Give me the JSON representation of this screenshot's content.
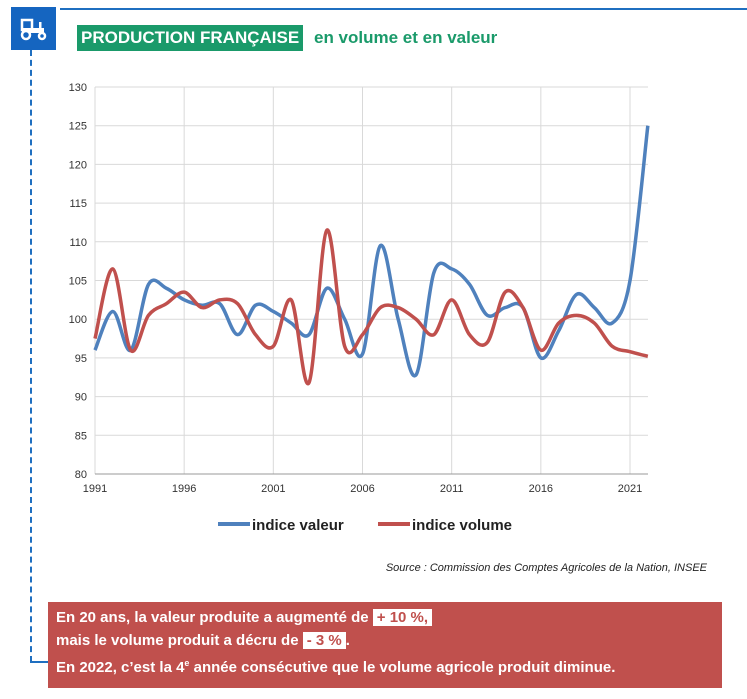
{
  "header": {
    "title": "PRODUCTION FRANÇAISE",
    "subtitle": "en volume et en valeur",
    "icon": "tractor-icon"
  },
  "chart_data": {
    "type": "line",
    "x": [
      1991,
      1992,
      1993,
      1994,
      1995,
      1996,
      1997,
      1998,
      1999,
      2000,
      2001,
      2002,
      2003,
      2004,
      2005,
      2006,
      2007,
      2008,
      2009,
      2010,
      2011,
      2012,
      2013,
      2014,
      2015,
      2016,
      2017,
      2018,
      2019,
      2020,
      2021,
      2022
    ],
    "series": [
      {
        "name": "indice valeur",
        "color": "#4f81bd",
        "values": [
          96,
          101,
          96,
          104.5,
          104,
          102.5,
          101.8,
          102,
          98,
          101.8,
          101,
          99.5,
          98,
          104,
          100,
          95.5,
          109.5,
          100,
          92.8,
          106,
          106.5,
          104.5,
          100.5,
          101.5,
          101.5,
          95,
          98.5,
          103.2,
          101.5,
          99.5,
          105,
          125
        ]
      },
      {
        "name": "indice volume",
        "color": "#c0504d",
        "values": [
          97.5,
          106.5,
          96,
          100.5,
          102,
          103.5,
          101.5,
          102.5,
          102,
          98,
          96.5,
          102.5,
          91.8,
          111.5,
          96.5,
          98,
          101.5,
          101.5,
          100,
          98,
          102.5,
          98,
          97,
          103.5,
          101.5,
          96,
          99.5,
          100.5,
          99.5,
          96.5,
          95.8,
          95.2
        ]
      }
    ],
    "xticks": [
      "1991",
      "1996",
      "2001",
      "2006",
      "2011",
      "2016",
      "2021"
    ],
    "yticks": [
      "80",
      "85",
      "90",
      "95",
      "100",
      "105",
      "110",
      "115",
      "120",
      "125",
      "130"
    ],
    "ylim": [
      80,
      130
    ],
    "xlim": [
      1991,
      2022
    ],
    "grid": true,
    "legend": "bottom"
  },
  "source": "Source : Commission des Comptes Agricoles de la Nation, INSEE",
  "summary": {
    "line1": "En 20 ans, la valeur produite a augmenté de ",
    "value1": "+ 10 %,",
    "line2": "mais le volume produit a décru de ",
    "value2": "- 3 %",
    "line2_end": ".",
    "line3a": "En 2022, c’est la 4",
    "line3_sup": "e",
    "line3b": " année consécutive que le volume agricole produit diminue."
  }
}
